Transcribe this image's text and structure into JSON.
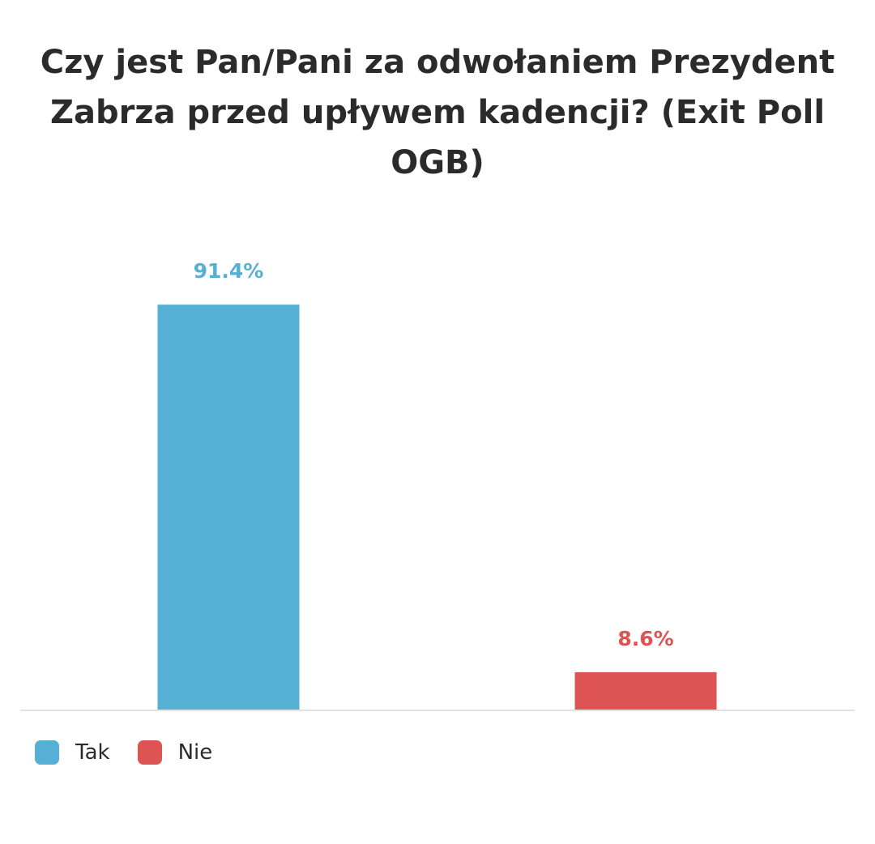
{
  "chart_data": {
    "type": "bar",
    "title": "Czy jest Pan/Pani za odwołaniem Prezydent Zabrza przed upływem kadencji? (Exit Poll OGB)",
    "categories": [
      "Tak",
      "Nie"
    ],
    "values": [
      91.4,
      8.6
    ],
    "data_labels": [
      "91.4%",
      "8.6%"
    ],
    "colors": [
      "#56b0d6",
      "#de5353"
    ],
    "ylim": [
      0,
      100
    ],
    "grid": false,
    "legend_placement": "bottom-left",
    "legend": [
      {
        "label": "Tak",
        "color": "#56b0d6"
      },
      {
        "label": "Nie",
        "color": "#de5353"
      }
    ]
  }
}
